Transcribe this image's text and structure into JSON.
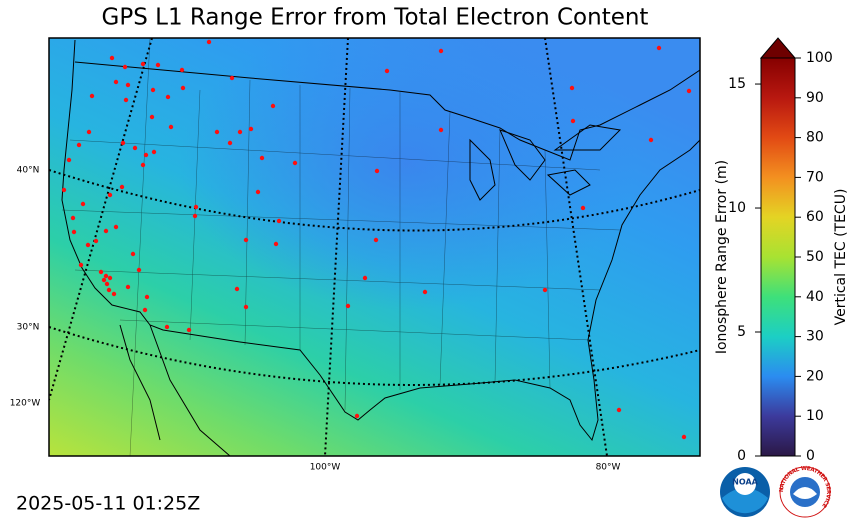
{
  "title": "GPS L1 Range Error from Total Electron Content",
  "timestamp": "2025-05-11 01:25Z",
  "map": {
    "lat_labels": [
      "40°N",
      "30°N"
    ],
    "lon_labels": [
      "120°W",
      "100°W",
      "80°W"
    ]
  },
  "colorbar": {
    "left_label": "Ionosphere Range Error (m)",
    "left_lim": [
      0,
      16.05
    ],
    "left_ticks": [
      0,
      5,
      10,
      15
    ],
    "right_label": "Vertical TEC (TECU)",
    "right_lim": [
      0,
      100
    ],
    "right_ticks": [
      0,
      10,
      20,
      30,
      40,
      50,
      60,
      70,
      80,
      90,
      100
    ]
  },
  "logos": {
    "noaa": "NOAA",
    "nws": "NATIONAL WEATHER SERVICE"
  }
}
